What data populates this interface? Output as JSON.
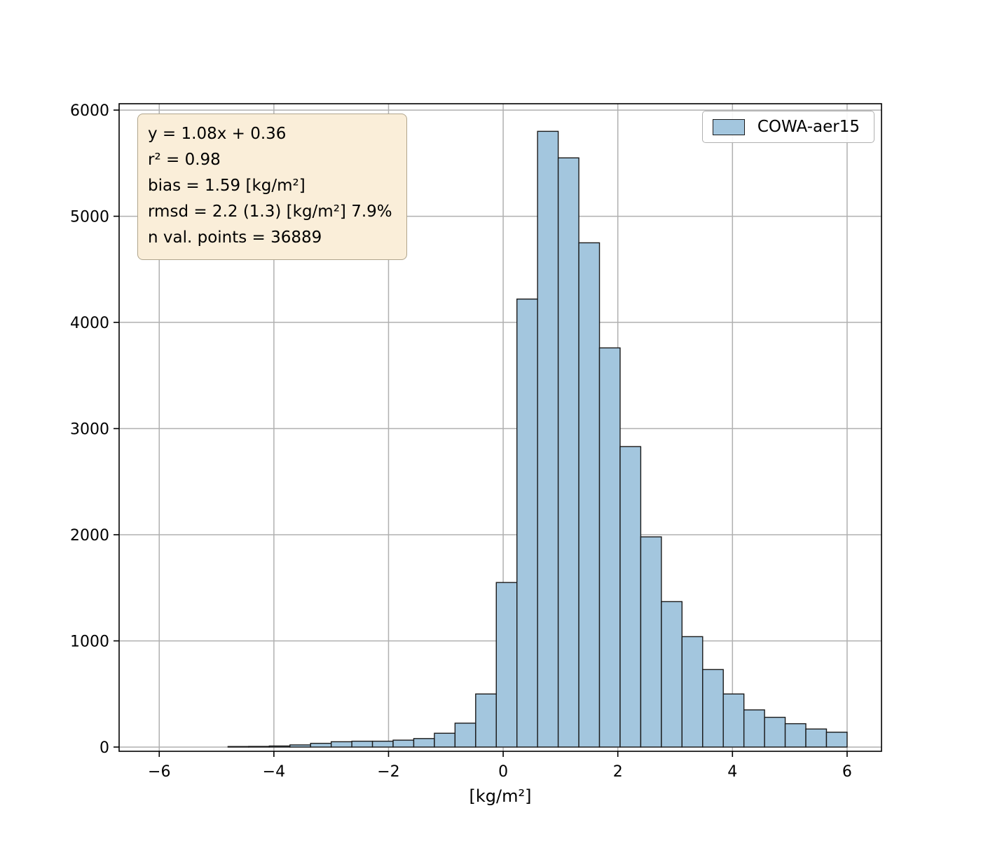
{
  "colors": {
    "bar_fill": "#a3c6de",
    "bar_edge": "#1a1a1a",
    "grid": "#b0b0b0",
    "frame": "#000000",
    "stats_bg": "#faeed9",
    "stats_border": "#b0a58c",
    "legend_border": "#b0b0b0"
  },
  "chart_data": {
    "type": "bar",
    "subtype": "histogram",
    "bin_width": 0.36,
    "bin_left_edges": [
      -4.8,
      -4.44,
      -4.08,
      -3.72,
      -3.36,
      -3.0,
      -2.64,
      -2.28,
      -1.92,
      -1.56,
      -1.2,
      -0.84,
      -0.48,
      -0.12,
      0.24,
      0.6,
      0.96,
      1.32,
      1.68,
      2.04,
      2.4,
      2.76,
      3.12,
      3.48,
      3.84,
      4.2,
      4.56,
      4.92,
      5.28,
      5.64
    ],
    "counts": [
      5,
      6,
      10,
      20,
      35,
      50,
      55,
      55,
      65,
      80,
      130,
      225,
      500,
      1550,
      4220,
      5800,
      5550,
      4750,
      3760,
      2830,
      1980,
      1370,
      1040,
      730,
      500,
      350,
      280,
      220,
      170,
      140
    ],
    "title": "",
    "xlabel": "[kg/m²]",
    "ylabel": "",
    "xlim": [
      -6.7,
      6.6
    ],
    "ylim": [
      -40,
      6060
    ],
    "xticks": [
      -6,
      -4,
      -2,
      0,
      2,
      4,
      6
    ],
    "xtick_labels": [
      "−6",
      "−4",
      "−2",
      "0",
      "2",
      "4",
      "6"
    ],
    "yticks": [
      0,
      1000,
      2000,
      3000,
      4000,
      5000,
      6000
    ],
    "ytick_labels": [
      "0",
      "1000",
      "2000",
      "3000",
      "4000",
      "5000",
      "6000"
    ],
    "grid": "on",
    "legend": {
      "position": "upper right",
      "label": "COWA-aer15"
    },
    "stats_box": {
      "lines": [
        "y = 1.08x + 0.36",
        "r² = 0.98",
        "bias = 1.59 [kg/m²]",
        "rmsd = 2.2 (1.3) [kg/m²] 7.9%",
        "n val. points = 36889"
      ]
    }
  }
}
